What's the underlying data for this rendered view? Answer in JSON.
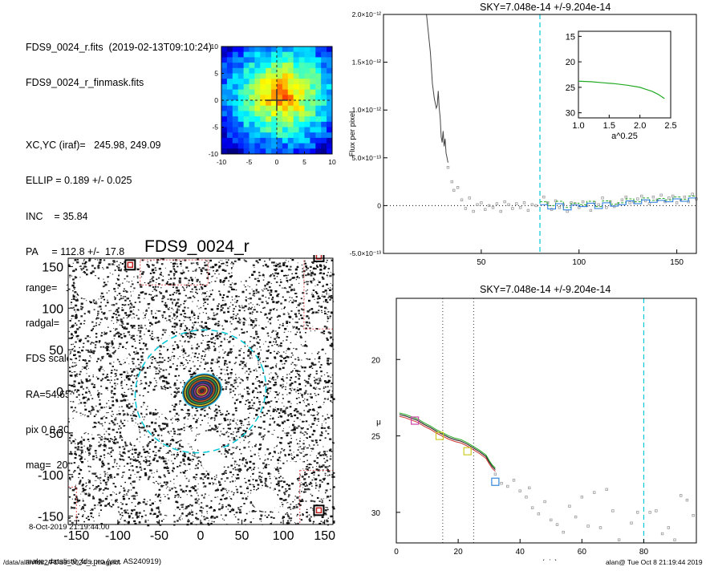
{
  "header": {
    "lines": [
      "FDS9_0024_r.fits  (2019-02-13T09:10:24)",
      "FDS9_0024_r_finmask.fits",
      "XC,YC (iraf)=   245.98, 249.09",
      "ELLIP = 0.189 +/- 0.025",
      "INC    = 35.84",
      "PA     = 112.8 +/-  17.8",
      "range=   15.-   25.",
      "radgal=   80.",
      "FDS scale=  100000000.",
      "RA=54.6594   DE=-33.8977",
      "pix 0 0.200 arcsec",
      "mag=  20.48   mag(radgal)=  20.48"
    ],
    "date_line": "8-Oct-2019 21:19:44.00",
    "program_line": "make_datalist0_fds.pro (ver. AS240919)"
  },
  "footer": {
    "left": "/data/alan/fds2/FDS9_0024_r_magplot",
    "right": "alan@  Tue Oct  8 21:19:44 2019"
  },
  "colors": {
    "sky_line": "#00c8d8",
    "profile": "#444444",
    "green": "#22aa22",
    "blue": "#2277dd"
  },
  "chart_data": [
    {
      "id": "thumbnail",
      "type": "heatmap",
      "title": "",
      "xlim": [
        -10,
        10
      ],
      "ylim": [
        -10,
        10
      ],
      "x_ticks": [
        "-10",
        "-5",
        "0",
        "5",
        "10"
      ],
      "y_ticks": [
        "-10",
        "-5",
        "0",
        "5",
        "10"
      ],
      "center": [
        0,
        0
      ],
      "colormap": "jet"
    },
    {
      "id": "galaxy_image",
      "type": "heatmap",
      "title": "FDS9_0024_r",
      "xlim": [
        -160,
        160
      ],
      "ylim": [
        -160,
        160
      ],
      "x_ticks": [
        "-150",
        "-100",
        "-50",
        "0",
        "50",
        "100",
        "150"
      ],
      "y_ticks": [
        "-150",
        "-100",
        "-50",
        "0",
        "50",
        "100",
        "150"
      ],
      "ellipse_radius": 80,
      "ellipse_ellip": 0.189,
      "ellipse_pa": 112.8
    },
    {
      "id": "sky_plot",
      "type": "scatter",
      "title": "SKY=7.048e-14 +/-9.204e-14",
      "ylabel": "Flux per pixel",
      "xlabel": "",
      "xlim": [
        0,
        160
      ],
      "ylim": [
        -5e-13,
        2e-12
      ],
      "x_ticks": [
        "50",
        "100",
        "150"
      ],
      "y_ticks": [
        "-5.0×10⁻¹³",
        "0",
        "5.0×10⁻¹³",
        "1.0×10⁻¹²",
        "1.5×10⁻¹²",
        "2.0×10⁻¹²"
      ],
      "y_tick_values": [
        -5e-13,
        0,
        5e-13,
        1e-12,
        1.5e-12,
        2e-12
      ],
      "sky_radius": 80,
      "profile_line": [
        [
          22,
          2e-12
        ],
        [
          24,
          1.6e-12
        ],
        [
          25,
          1.28e-12
        ],
        [
          26,
          1.12e-12
        ],
        [
          27,
          1.02e-12
        ],
        [
          27.5,
          1.05e-12
        ],
        [
          28,
          1.2e-12
        ],
        [
          28.5,
          1.02e-12
        ],
        [
          29,
          9.2e-13
        ],
        [
          29.5,
          7.2e-13
        ],
        [
          30,
          6.6e-13
        ],
        [
          30.5,
          7.8e-13
        ],
        [
          31,
          6.2e-13
        ],
        [
          31.5,
          7e-13
        ],
        [
          32,
          5.5e-13
        ],
        [
          33,
          4.5e-13
        ]
      ],
      "points": [
        [
          33,
          4e-13
        ],
        [
          35,
          2.5e-13
        ],
        [
          36,
          1.6e-13
        ],
        [
          38,
          1.9e-13
        ],
        [
          40,
          6e-14
        ],
        [
          42,
          -3e-14
        ],
        [
          44,
          8e-14
        ],
        [
          46,
          -6e-14
        ],
        [
          48,
          1e-14
        ],
        [
          50,
          3e-14
        ],
        [
          52,
          -4e-14
        ],
        [
          54,
          0.0
        ],
        [
          56,
          -2e-14
        ],
        [
          58,
          2e-14
        ],
        [
          60,
          -6e-14
        ],
        [
          62,
          4e-14
        ],
        [
          64,
          1e-14
        ],
        [
          66,
          -3e-14
        ],
        [
          68,
          2e-14
        ],
        [
          70,
          -2e-14
        ],
        [
          72,
          3e-14
        ],
        [
          74,
          -5e-14
        ],
        [
          76,
          1e-14
        ],
        [
          78,
          0.0
        ],
        [
          82,
          9e-14
        ],
        [
          84,
          3e-14
        ],
        [
          86,
          -4e-14
        ],
        [
          88,
          5e-14
        ],
        [
          90,
          -2e-14
        ],
        [
          92,
          1e-14
        ],
        [
          94,
          -6e-14
        ],
        [
          96,
          3e-14
        ],
        [
          98,
          2e-14
        ],
        [
          100,
          -2e-14
        ],
        [
          102,
          4e-14
        ],
        [
          104,
          0.0
        ],
        [
          106,
          -5e-14
        ],
        [
          108,
          3e-14
        ],
        [
          110,
          1e-14
        ],
        [
          112,
          8e-14
        ],
        [
          114,
          -2e-14
        ],
        [
          116,
          4e-14
        ],
        [
          118,
          -1e-14
        ],
        [
          120,
          2e-14
        ],
        [
          122,
          6e-14
        ],
        [
          124,
          9e-14
        ],
        [
          126,
          3e-14
        ],
        [
          128,
          4e-14
        ],
        [
          130,
          7e-14
        ],
        [
          132,
          1e-13
        ],
        [
          134,
          5e-14
        ],
        [
          136,
          2e-14
        ],
        [
          138,
          9e-14
        ],
        [
          140,
          6e-14
        ],
        [
          142,
          1.1e-13
        ],
        [
          144,
          4e-14
        ],
        [
          146,
          8e-14
        ],
        [
          148,
          1e-13
        ],
        [
          150,
          3e-14
        ],
        [
          152,
          6e-14
        ],
        [
          154,
          9e-14
        ],
        [
          156,
          4e-14
        ],
        [
          158,
          1.2e-13
        ],
        [
          160,
          7e-14
        ]
      ],
      "step_blue": [
        [
          80,
          1e-14
        ],
        [
          84,
          1e-14
        ],
        [
          84,
          -3.5e-14
        ],
        [
          88,
          -3.5e-14
        ],
        [
          88,
          2e-14
        ],
        [
          92,
          2e-14
        ],
        [
          92,
          -4.5e-14
        ],
        [
          96,
          -4.5e-14
        ],
        [
          96,
          5e-15
        ],
        [
          100,
          5e-15
        ],
        [
          100,
          -1e-14
        ],
        [
          104,
          -1e-14
        ],
        [
          104,
          2.5e-14
        ],
        [
          108,
          2.5e-14
        ],
        [
          108,
          -3e-14
        ],
        [
          112,
          -3e-14
        ],
        [
          112,
          3e-14
        ],
        [
          116,
          3e-14
        ],
        [
          116,
          -5e-15
        ],
        [
          120,
          -5e-15
        ],
        [
          120,
          1e-14
        ],
        [
          124,
          1e-14
        ],
        [
          124,
          5e-14
        ],
        [
          128,
          5e-14
        ],
        [
          128,
          2e-14
        ],
        [
          132,
          2e-14
        ],
        [
          132,
          6e-14
        ],
        [
          136,
          6e-14
        ],
        [
          136,
          3.5e-14
        ],
        [
          140,
          3.5e-14
        ],
        [
          140,
          5.5e-14
        ],
        [
          144,
          5.5e-14
        ],
        [
          144,
          4e-14
        ],
        [
          148,
          4e-14
        ],
        [
          148,
          7e-14
        ],
        [
          152,
          7e-14
        ],
        [
          152,
          4.5e-14
        ],
        [
          156,
          4.5e-14
        ],
        [
          156,
          8e-14
        ],
        [
          160,
          8e-14
        ]
      ],
      "step_green": [
        [
          80,
          4e-14
        ],
        [
          84,
          4e-14
        ],
        [
          84,
          0.0
        ],
        [
          88,
          0.0
        ],
        [
          88,
          4.5e-14
        ],
        [
          92,
          4.5e-14
        ],
        [
          92,
          -2e-14
        ],
        [
          96,
          -2e-14
        ],
        [
          96,
          2.5e-14
        ],
        [
          100,
          2.5e-14
        ],
        [
          100,
          1e-14
        ],
        [
          104,
          1e-14
        ],
        [
          104,
          4.5e-14
        ],
        [
          108,
          4.5e-14
        ],
        [
          108,
          -1e-14
        ],
        [
          112,
          -1e-14
        ],
        [
          112,
          5e-14
        ],
        [
          116,
          5e-14
        ],
        [
          116,
          1.5e-14
        ],
        [
          120,
          1.5e-14
        ],
        [
          120,
          3e-14
        ],
        [
          124,
          3e-14
        ],
        [
          124,
          7e-14
        ],
        [
          128,
          7e-14
        ],
        [
          128,
          4e-14
        ],
        [
          132,
          4e-14
        ],
        [
          132,
          8e-14
        ],
        [
          136,
          8e-14
        ],
        [
          136,
          5.5e-14
        ],
        [
          140,
          5.5e-14
        ],
        [
          140,
          7.5e-14
        ],
        [
          144,
          7.5e-14
        ],
        [
          144,
          6e-14
        ],
        [
          148,
          6e-14
        ],
        [
          148,
          9e-14
        ],
        [
          152,
          9e-14
        ],
        [
          152,
          6.5e-14
        ],
        [
          156,
          6.5e-14
        ],
        [
          156,
          1e-13
        ],
        [
          160,
          1e-13
        ]
      ]
    },
    {
      "id": "inset_plot",
      "type": "line",
      "title": "",
      "xlabel": "a^0.25",
      "ylabel": "",
      "xlim": [
        1.0,
        2.5
      ],
      "ylim": [
        31,
        14
      ],
      "x_ticks": [
        "1.0",
        "1.5",
        "2.0",
        "2.5"
      ],
      "y_ticks": [
        "15",
        "20",
        "25",
        "30"
      ],
      "series": [
        {
          "values": [
            [
              1.0,
              23.8
            ],
            [
              1.2,
              23.9
            ],
            [
              1.4,
              24.1
            ],
            [
              1.6,
              24.3
            ],
            [
              1.8,
              24.6
            ],
            [
              2.0,
              25.0
            ],
            [
              2.1,
              25.4
            ],
            [
              2.2,
              25.8
            ],
            [
              2.3,
              26.4
            ],
            [
              2.35,
              26.8
            ],
            [
              2.4,
              27.2
            ]
          ]
        }
      ]
    },
    {
      "id": "profile_plot",
      "type": "scatter",
      "title": "SKY=7.048e-14 +/-9.204e-14",
      "xlabel": "a (pix)",
      "ylabel": "μ",
      "xlim": [
        0,
        97
      ],
      "ylim": [
        32,
        16
      ],
      "x_ticks": [
        "0",
        "20",
        "40",
        "60",
        "80"
      ],
      "y_ticks": [
        "20",
        "25",
        "30"
      ],
      "range_lines": [
        15,
        25
      ],
      "sky_radius": 80,
      "profile_line": [
        [
          1,
          23.6
        ],
        [
          3,
          23.7
        ],
        [
          5,
          23.85
        ],
        [
          7,
          24.0
        ],
        [
          9,
          24.25
        ],
        [
          11,
          24.45
        ],
        [
          13,
          24.7
        ],
        [
          15,
          24.9
        ],
        [
          17,
          25.1
        ],
        [
          19,
          25.25
        ],
        [
          21,
          25.35
        ],
        [
          23,
          25.55
        ],
        [
          25,
          25.8
        ],
        [
          27,
          26.05
        ],
        [
          29,
          26.35
        ],
        [
          30,
          26.7
        ],
        [
          31,
          27.0
        ],
        [
          32,
          27.2
        ]
      ],
      "squares": [
        [
          6,
          24.0,
          "#cc44aa"
        ],
        [
          14,
          25.0,
          "#cccc22"
        ],
        [
          23,
          26.0,
          "#cccc22"
        ],
        [
          32,
          28.0,
          "#3388dd"
        ]
      ],
      "points": [
        [
          32,
          27.5
        ],
        [
          34,
          28.1
        ],
        [
          36,
          28.3
        ],
        [
          38,
          27.9
        ],
        [
          40,
          28.6
        ],
        [
          42,
          29.0
        ],
        [
          43,
          28.4
        ],
        [
          44,
          29.7
        ],
        [
          46,
          30.1
        ],
        [
          48,
          29.3
        ],
        [
          50,
          30.5
        ],
        [
          52,
          30.8
        ],
        [
          54,
          31.3
        ],
        [
          56,
          29.6
        ],
        [
          58,
          30.3
        ],
        [
          60,
          29.0
        ],
        [
          62,
          30.9
        ],
        [
          64,
          28.7
        ],
        [
          66,
          31.0
        ],
        [
          68,
          28.5
        ],
        [
          70,
          29.9
        ],
        [
          72,
          31.8
        ],
        [
          76,
          30.7
        ],
        [
          78,
          30.0
        ],
        [
          82,
          30.0
        ],
        [
          84,
          29.9
        ],
        [
          86,
          31.4
        ],
        [
          88,
          31.0
        ],
        [
          90,
          31.8
        ],
        [
          92,
          28.9
        ],
        [
          94,
          29.2
        ],
        [
          96,
          30.2
        ]
      ]
    }
  ]
}
